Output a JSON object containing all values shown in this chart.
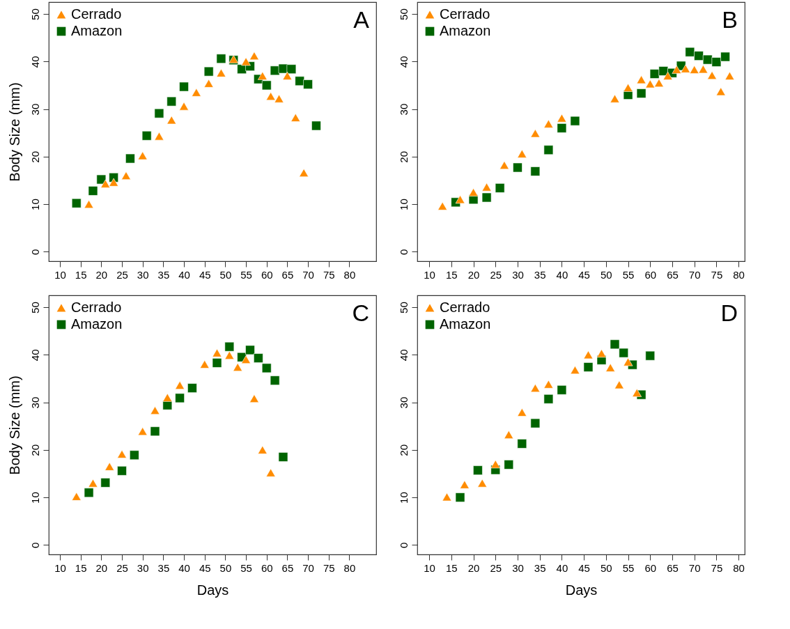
{
  "chart_data": [
    {
      "type": "scatter",
      "title": "A",
      "ylabel": "Body Size (mm)",
      "xlim": [
        7.3,
        86.5
      ],
      "ylim": [
        -2,
        52.5
      ],
      "xticks": [
        10,
        15,
        20,
        25,
        30,
        35,
        40,
        45,
        50,
        55,
        60,
        65,
        70,
        75,
        80
      ],
      "yticks": [
        0,
        10,
        20,
        30,
        40,
        50
      ],
      "legend": "top left",
      "series": [
        {
          "name": "Cerrado",
          "color": "#ff8c00",
          "marker": "triangle",
          "x": [
            17,
            21,
            23,
            26,
            30,
            34,
            37,
            40,
            43,
            46,
            49,
            52,
            55,
            57,
            59,
            61,
            63,
            65,
            67,
            69
          ],
          "values": [
            10,
            14.3,
            14.6,
            16,
            20.2,
            24.3,
            27.7,
            30.6,
            33.5,
            35.4,
            37.6,
            40.5,
            40,
            41.2,
            37,
            32.7,
            32.2,
            37,
            28.2,
            16.6
          ]
        },
        {
          "name": "Amazon",
          "color": "#006400",
          "marker": "square",
          "x": [
            14,
            18,
            20,
            23,
            27,
            31,
            34,
            37,
            40,
            46,
            49,
            52,
            54,
            56,
            58,
            60,
            62,
            64,
            66,
            68,
            70,
            72
          ],
          "values": [
            10.2,
            12.8,
            15.2,
            15.6,
            19.6,
            24.4,
            29.1,
            31.6,
            34.7,
            37.9,
            40.6,
            40.3,
            38.4,
            39,
            36.3,
            35,
            38.1,
            38.5,
            38.4,
            35.9,
            35.2,
            26.5
          ]
        }
      ]
    },
    {
      "type": "scatter",
      "title": "B",
      "xlim": [
        7.3,
        81.4
      ],
      "ylim": [
        -2,
        52.5
      ],
      "xticks": [
        10,
        15,
        20,
        25,
        30,
        35,
        40,
        45,
        50,
        55,
        60,
        65,
        70,
        75,
        80
      ],
      "yticks": [
        0,
        10,
        20,
        30,
        40,
        50
      ],
      "legend": "top left",
      "series": [
        {
          "name": "Cerrado",
          "color": "#ff8c00",
          "marker": "triangle",
          "x": [
            13,
            17,
            20,
            23,
            27,
            31,
            34,
            37,
            40,
            52,
            55,
            58,
            60,
            62,
            64,
            66,
            68,
            70,
            72,
            74,
            76,
            78
          ],
          "values": [
            9.6,
            11,
            12.5,
            13.6,
            18.2,
            20.6,
            24.9,
            26.9,
            28.1,
            32.2,
            34.5,
            36.2,
            35.3,
            35.5,
            37,
            38.3,
            38.5,
            38.3,
            38.4,
            37.1,
            33.7,
            37
          ]
        },
        {
          "name": "Amazon",
          "color": "#006400",
          "marker": "square",
          "x": [
            16,
            20,
            23,
            26,
            30,
            34,
            37,
            40,
            43,
            55,
            58,
            61,
            63,
            65,
            67,
            69,
            71,
            73,
            75,
            77
          ],
          "values": [
            10.4,
            11,
            11.4,
            13.4,
            17.7,
            16.9,
            21.4,
            26,
            27.5,
            33,
            33.3,
            37.4,
            38,
            37.6,
            39.1,
            42,
            41.2,
            40.4,
            39.9,
            41
          ]
        }
      ]
    },
    {
      "type": "scatter",
      "title": "C",
      "ylabel": "Body Size (mm)",
      "xlabel": "Days",
      "xlim": [
        7.3,
        86.5
      ],
      "ylim": [
        -2,
        52.5
      ],
      "xticks": [
        10,
        15,
        20,
        25,
        30,
        35,
        40,
        45,
        50,
        55,
        60,
        65,
        70,
        75,
        80
      ],
      "yticks": [
        0,
        10,
        20,
        30,
        40,
        50
      ],
      "legend": "top left",
      "series": [
        {
          "name": "Cerrado",
          "color": "#ff8c00",
          "marker": "triangle",
          "x": [
            14,
            18,
            22,
            25,
            30,
            33,
            36,
            39,
            45,
            48,
            51,
            53,
            55,
            57,
            59,
            61
          ],
          "values": [
            10.2,
            13,
            16.5,
            19.1,
            23.9,
            28.3,
            31,
            33.6,
            38,
            40.4,
            39.9,
            37.4,
            39,
            30.8,
            20,
            15.2
          ]
        },
        {
          "name": "Amazon",
          "color": "#006400",
          "marker": "square",
          "x": [
            17,
            21,
            25,
            28,
            33,
            36,
            39,
            42,
            48,
            51,
            54,
            56,
            58,
            60,
            62,
            64
          ],
          "values": [
            11,
            13.1,
            15.6,
            18.9,
            23.9,
            29.4,
            30.9,
            33,
            38.3,
            41.7,
            39.5,
            41,
            39.3,
            37.2,
            34.6,
            18.5
          ]
        }
      ]
    },
    {
      "type": "scatter",
      "title": "D",
      "xlabel": "Days",
      "xlim": [
        7.3,
        81.4
      ],
      "ylim": [
        -2,
        52.5
      ],
      "xticks": [
        10,
        15,
        20,
        25,
        30,
        35,
        40,
        45,
        50,
        55,
        60,
        65,
        70,
        75,
        80
      ],
      "yticks": [
        0,
        10,
        20,
        30,
        40,
        50
      ],
      "legend": "top left",
      "series": [
        {
          "name": "Cerrado",
          "color": "#ff8c00",
          "marker": "triangle",
          "x": [
            14,
            18,
            22,
            25,
            28,
            31,
            34,
            37,
            43,
            46,
            49,
            51,
            53,
            55,
            57
          ],
          "values": [
            10.1,
            12.7,
            13,
            17,
            23.2,
            27.9,
            33,
            33.8,
            36.8,
            40,
            40.3,
            37.3,
            33.7,
            38.5,
            32
          ]
        },
        {
          "name": "Amazon",
          "color": "#006400",
          "marker": "square",
          "x": [
            17,
            21,
            25,
            28,
            31,
            34,
            37,
            40,
            46,
            49,
            52,
            54,
            56,
            58,
            60
          ],
          "values": [
            10,
            15.7,
            15.8,
            16.9,
            21.3,
            25.6,
            30.7,
            32.6,
            37.4,
            38.9,
            42.2,
            40.4,
            37.9,
            31.6,
            39.8
          ]
        }
      ]
    }
  ]
}
